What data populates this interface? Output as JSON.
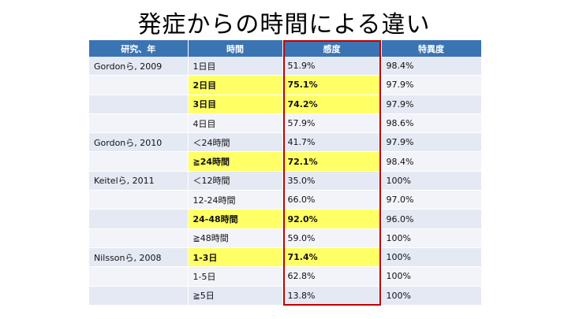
{
  "title": "発症からの時間による違い",
  "headers": [
    "研究、年",
    "時間",
    "感度",
    "特異度"
  ],
  "rows": [
    {
      "study": "Gordonら, 2009",
      "time": "1日目",
      "sensitivity": "51.9%",
      "specificity": "98.4%",
      "highlight": false
    },
    {
      "study": "",
      "time": "2日目",
      "sensitivity": "75.1%",
      "specificity": "97.9%",
      "highlight": true
    },
    {
      "study": "",
      "time": "3日目",
      "sensitivity": "74.2%",
      "specificity": "97.9%",
      "highlight": true
    },
    {
      "study": "",
      "time": "4日目",
      "sensitivity": "57.9%",
      "specificity": "98.6%",
      "highlight": false
    },
    {
      "study": "Gordonら, 2010",
      "time": "＜24時間",
      "sensitivity": "41.7%",
      "specificity": "97.9%",
      "highlight": false
    },
    {
      "study": "",
      "time": "≧24時間",
      "sensitivity": "72.1%",
      "specificity": "98.4%",
      "highlight": true
    },
    {
      "study": "Keitelら, 2011",
      "time": "＜12時間",
      "sensitivity": "35.0%",
      "specificity": "100%",
      "highlight": false
    },
    {
      "study": "",
      "time": "12-24時間",
      "sensitivity": "66.0%",
      "specificity": "97.0%",
      "highlight": false
    },
    {
      "study": "",
      "time": "24-48時間",
      "sensitivity": "92.0%",
      "specificity": "96.0%",
      "highlight": true
    },
    {
      "study": "",
      "time": "≧48時間",
      "sensitivity": "59.0%",
      "specificity": "100%",
      "highlight": false
    },
    {
      "study": "Nilssonら, 2008",
      "time": "1-3日",
      "sensitivity": "71.4%",
      "specificity": "100%",
      "highlight": true
    },
    {
      "study": "",
      "time": "1-5日",
      "sensitivity": "62.8%",
      "specificity": "100%",
      "highlight": false
    },
    {
      "study": "",
      "time": "≧5日",
      "sensitivity": "13.8%",
      "specificity": "100%",
      "highlight": false
    }
  ],
  "colors": {
    "header": "#3b74b3",
    "highlight": "#ffff66",
    "box": "#c00000"
  }
}
